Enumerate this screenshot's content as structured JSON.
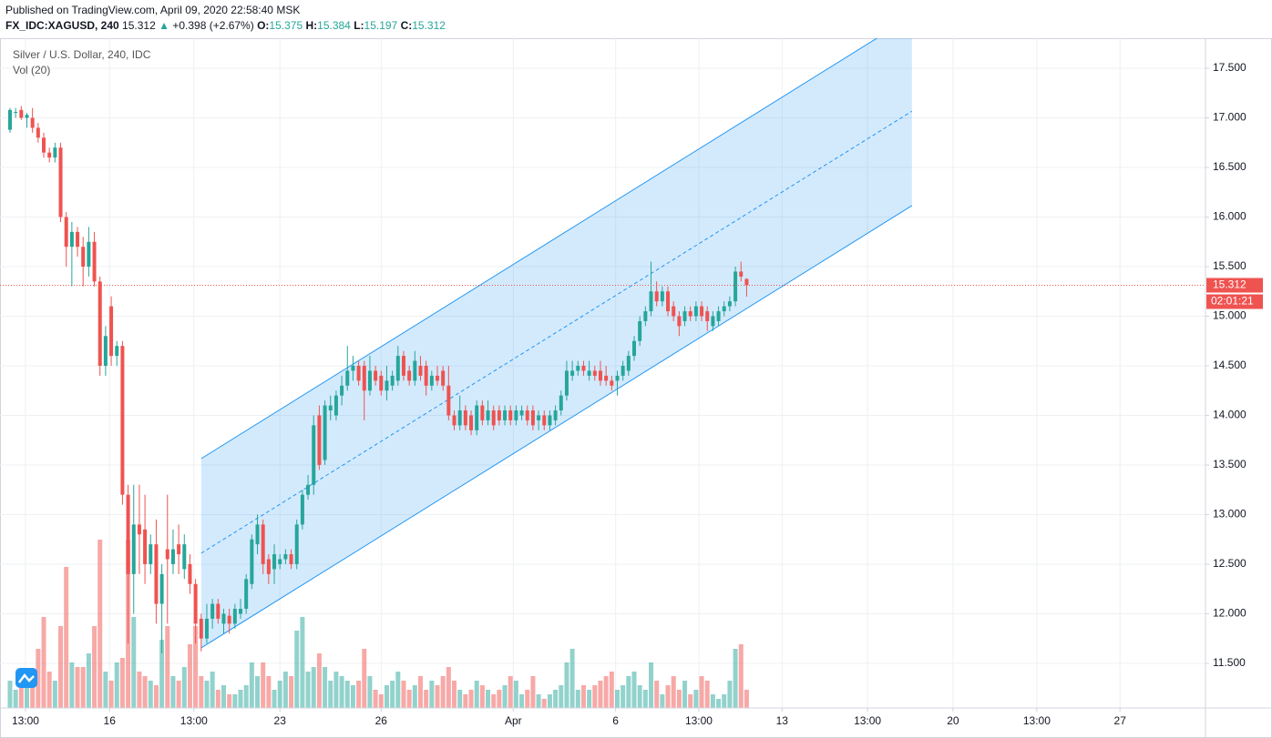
{
  "header": {
    "published": "Published on TradingView.com, April 09, 2020 22:58:40 MSK",
    "symbol": "FX_IDC:XAGUSD, 240",
    "change": "+0.398 (+2.67%)",
    "o": "O:",
    "h": "H:",
    "l": "L:",
    "c": "C:"
  },
  "chart_data": {
    "type": "candlestick",
    "title": "Silver / U.S. Dollar, 240, IDC",
    "indicator": "Vol (20)",
    "up_color": "#26a69a",
    "down_color": "#ef5350",
    "grid": true,
    "countdown": "02:01:21",
    "xlim": [
      -1.78,
      212.6
    ],
    "ylim": [
      11.05,
      17.803
    ],
    "xticks": [
      {
        "value": 2.75,
        "label": "13:00"
      },
      {
        "value": 17.7,
        "label": "16"
      },
      {
        "value": 32.7,
        "label": "13:00"
      },
      {
        "value": 48,
        "label": "23"
      },
      {
        "value": 66,
        "label": "26"
      },
      {
        "value": 89.5,
        "label": "Apr"
      },
      {
        "value": 107.7,
        "label": "6"
      },
      {
        "value": 122.5,
        "label": "13:00"
      },
      {
        "value": 137.3,
        "label": "13"
      },
      {
        "value": 152.5,
        "label": "13:00"
      },
      {
        "value": 167.7,
        "label": "20"
      },
      {
        "value": 182.6,
        "label": "13:00"
      },
      {
        "value": 197.4,
        "label": "27"
      }
    ],
    "yticks": [
      {
        "value": 11.5,
        "label": "11.500"
      },
      {
        "value": 12,
        "label": "12.000"
      },
      {
        "value": 12.5,
        "label": "12.500"
      },
      {
        "value": 13,
        "label": "13.000"
      },
      {
        "value": 13.5,
        "label": "13.500"
      },
      {
        "value": 14,
        "label": "14.000"
      },
      {
        "value": 14.5,
        "label": "14.500"
      },
      {
        "value": 15,
        "label": "15.000"
      },
      {
        "value": 15.5,
        "label": "15.500"
      },
      {
        "value": 16,
        "label": "16.000"
      },
      {
        "value": 16.5,
        "label": "16.500"
      },
      {
        "value": 17,
        "label": "17.000"
      },
      {
        "value": 17.5,
        "label": "17.500"
      }
    ],
    "candles": [
      [
        16.88,
        17.1,
        16.85,
        17.08
      ],
      [
        17.05,
        17.1,
        17.0,
        17.06
      ],
      [
        17.08,
        17.12,
        16.98,
        17.0
      ],
      [
        17.0,
        17.05,
        16.9,
        17.03
      ],
      [
        17.0,
        17.1,
        16.85,
        16.9
      ],
      [
        16.9,
        16.95,
        16.75,
        16.8
      ],
      [
        16.8,
        16.85,
        16.6,
        16.65
      ],
      [
        16.65,
        16.7,
        16.55,
        16.6
      ],
      [
        16.6,
        16.75,
        16.55,
        16.7
      ],
      [
        16.7,
        16.75,
        15.95,
        16.0
      ],
      [
        16.0,
        16.05,
        15.5,
        15.7
      ],
      [
        15.7,
        15.95,
        15.3,
        15.85
      ],
      [
        15.85,
        15.9,
        15.6,
        15.7
      ],
      [
        15.7,
        15.8,
        15.3,
        15.5
      ],
      [
        15.5,
        15.9,
        15.4,
        15.75
      ],
      [
        15.75,
        15.85,
        15.3,
        15.35
      ],
      [
        15.35,
        15.4,
        14.4,
        14.5
      ],
      [
        14.5,
        14.9,
        14.4,
        14.8
      ],
      [
        15.1,
        15.2,
        14.5,
        14.6
      ],
      [
        14.6,
        14.75,
        14.5,
        14.7
      ],
      [
        14.7,
        14.75,
        13.1,
        13.2
      ],
      [
        13.2,
        13.3,
        11.7,
        12.4
      ],
      [
        12.4,
        13.3,
        12.0,
        12.9
      ],
      [
        12.9,
        13.3,
        12.4,
        12.8
      ],
      [
        12.85,
        13.2,
        12.3,
        12.5
      ],
      [
        12.5,
        12.8,
        12.4,
        12.7
      ],
      [
        12.7,
        12.95,
        11.9,
        12.1
      ],
      [
        12.1,
        12.5,
        11.6,
        12.4
      ],
      [
        12.65,
        13.2,
        11.9,
        12.55
      ],
      [
        12.5,
        12.85,
        12.4,
        12.65
      ],
      [
        12.7,
        12.9,
        12.4,
        12.6
      ],
      [
        12.45,
        12.8,
        12.35,
        12.7
      ],
      [
        12.5,
        12.6,
        12.2,
        12.3
      ],
      [
        12.3,
        12.35,
        11.7,
        11.9
      ],
      [
        11.95,
        12.0,
        11.62,
        11.75
      ],
      [
        11.75,
        12.1,
        11.7,
        11.95
      ],
      [
        11.95,
        12.15,
        11.85,
        12.1
      ],
      [
        12.1,
        12.15,
        11.9,
        11.95
      ],
      [
        11.9,
        12.05,
        11.8,
        12.0
      ],
      [
        11.98,
        12.05,
        11.8,
        11.9
      ],
      [
        11.9,
        12.1,
        11.85,
        12.05
      ],
      [
        12.0,
        12.15,
        11.95,
        12.05
      ],
      [
        12.05,
        12.4,
        12.0,
        12.35
      ],
      [
        12.3,
        12.8,
        12.25,
        12.75
      ],
      [
        12.7,
        13.0,
        12.6,
        12.9
      ],
      [
        12.9,
        12.95,
        12.4,
        12.5
      ],
      [
        12.55,
        12.6,
        12.3,
        12.4
      ],
      [
        12.45,
        12.7,
        12.3,
        12.6
      ],
      [
        12.5,
        12.6,
        12.45,
        12.55
      ],
      [
        12.55,
        12.65,
        12.5,
        12.6
      ],
      [
        12.6,
        12.65,
        12.45,
        12.5
      ],
      [
        12.5,
        12.95,
        12.45,
        12.9
      ],
      [
        12.9,
        13.25,
        12.85,
        13.2
      ],
      [
        13.2,
        13.4,
        13.15,
        13.3
      ],
      [
        13.3,
        14.0,
        13.2,
        13.9
      ],
      [
        14.0,
        14.1,
        13.45,
        13.5
      ],
      [
        13.55,
        14.15,
        13.5,
        14.1
      ],
      [
        14.05,
        14.2,
        13.95,
        14.1
      ],
      [
        14.0,
        14.25,
        13.95,
        14.2
      ],
      [
        14.2,
        14.4,
        14.1,
        14.3
      ],
      [
        14.3,
        14.7,
        14.25,
        14.45
      ],
      [
        14.45,
        14.6,
        14.35,
        14.5
      ],
      [
        14.5,
        14.55,
        14.3,
        14.35
      ],
      [
        14.5,
        14.55,
        13.95,
        14.25
      ],
      [
        14.25,
        14.6,
        14.2,
        14.45
      ],
      [
        14.45,
        14.5,
        14.3,
        14.35
      ],
      [
        14.4,
        14.45,
        14.2,
        14.25
      ],
      [
        14.25,
        14.5,
        14.15,
        14.35
      ],
      [
        14.3,
        14.45,
        14.25,
        14.4
      ],
      [
        14.35,
        14.7,
        14.3,
        14.6
      ],
      [
        14.6,
        14.65,
        14.35,
        14.4
      ],
      [
        14.45,
        14.5,
        14.3,
        14.35
      ],
      [
        14.35,
        14.65,
        14.3,
        14.55
      ],
      [
        14.5,
        14.6,
        14.35,
        14.4
      ],
      [
        14.5,
        14.55,
        14.2,
        14.3
      ],
      [
        14.3,
        14.45,
        14.25,
        14.4
      ],
      [
        14.4,
        14.5,
        14.3,
        14.35
      ],
      [
        14.45,
        14.5,
        14.25,
        14.3
      ],
      [
        14.3,
        14.5,
        13.95,
        14.0
      ],
      [
        14.0,
        14.05,
        13.85,
        13.9
      ],
      [
        13.9,
        14.2,
        13.85,
        14.05
      ],
      [
        14.05,
        14.1,
        13.85,
        13.9
      ],
      [
        14.0,
        14.05,
        13.8,
        13.85
      ],
      [
        13.85,
        14.15,
        13.8,
        14.1
      ],
      [
        14.1,
        14.15,
        13.9,
        13.95
      ],
      [
        13.95,
        14.15,
        13.9,
        14.05
      ],
      [
        14.05,
        14.1,
        13.85,
        13.9
      ],
      [
        14.05,
        14.1,
        13.9,
        13.95
      ],
      [
        13.95,
        14.1,
        13.9,
        14.05
      ],
      [
        14.05,
        14.1,
        13.9,
        13.95
      ],
      [
        13.95,
        14.1,
        13.9,
        14.05
      ],
      [
        14.0,
        14.1,
        13.95,
        14.05
      ],
      [
        14.05,
        14.1,
        13.9,
        13.95
      ],
      [
        14.05,
        14.1,
        13.85,
        13.9
      ],
      [
        13.95,
        14.05,
        13.85,
        14.0
      ],
      [
        14.0,
        14.05,
        13.85,
        13.9
      ],
      [
        13.9,
        14.05,
        13.85,
        14.0
      ],
      [
        13.95,
        14.1,
        13.9,
        14.05
      ],
      [
        14.05,
        14.25,
        14.0,
        14.2
      ],
      [
        14.2,
        14.55,
        14.15,
        14.45
      ],
      [
        14.4,
        14.55,
        14.35,
        14.45
      ],
      [
        14.45,
        14.55,
        14.4,
        14.5
      ],
      [
        14.5,
        14.55,
        14.4,
        14.45
      ],
      [
        14.4,
        14.55,
        14.35,
        14.45
      ],
      [
        14.45,
        14.5,
        14.35,
        14.4
      ],
      [
        14.45,
        14.55,
        14.3,
        14.35
      ],
      [
        14.4,
        14.5,
        14.3,
        14.35
      ],
      [
        14.35,
        14.4,
        14.25,
        14.3
      ],
      [
        14.35,
        14.45,
        14.2,
        14.4
      ],
      [
        14.4,
        14.55,
        14.35,
        14.5
      ],
      [
        14.45,
        14.65,
        14.4,
        14.6
      ],
      [
        14.6,
        14.8,
        14.55,
        14.75
      ],
      [
        14.75,
        15.0,
        14.7,
        14.95
      ],
      [
        14.95,
        15.1,
        14.9,
        15.05
      ],
      [
        15.05,
        15.55,
        15.0,
        15.25
      ],
      [
        15.25,
        15.35,
        15.1,
        15.15
      ],
      [
        15.15,
        15.3,
        15.1,
        15.25
      ],
      [
        15.25,
        15.3,
        15.0,
        15.05
      ],
      [
        15.1,
        15.15,
        14.95,
        15.0
      ],
      [
        15.0,
        15.05,
        14.8,
        14.9
      ],
      [
        14.95,
        15.1,
        14.9,
        15.05
      ],
      [
        15.05,
        15.1,
        14.95,
        15.0
      ],
      [
        15.0,
        15.15,
        14.95,
        15.1
      ],
      [
        15.1,
        15.15,
        14.95,
        15.0
      ],
      [
        15.05,
        15.1,
        14.85,
        14.95
      ],
      [
        14.9,
        15.05,
        14.85,
        15.0
      ],
      [
        14.95,
        15.1,
        14.9,
        15.05
      ],
      [
        15.05,
        15.15,
        15.0,
        15.1
      ],
      [
        15.1,
        15.2,
        15.05,
        15.15
      ],
      [
        15.15,
        15.5,
        15.1,
        15.45
      ],
      [
        15.45,
        15.55,
        15.35,
        15.4
      ],
      [
        15.375,
        15.384,
        15.197,
        15.312
      ]
    ],
    "volume": [
      12,
      8,
      10,
      16,
      12,
      26,
      40,
      16,
      12,
      36,
      62,
      20,
      18,
      18,
      24,
      36,
      74,
      16,
      12,
      20,
      22,
      74,
      40,
      16,
      14,
      12,
      10,
      30,
      36,
      14,
      12,
      18,
      28,
      36,
      14,
      12,
      16,
      8,
      10,
      6,
      6,
      8,
      10,
      20,
      14,
      20,
      14,
      8,
      12,
      16,
      14,
      34,
      40,
      16,
      18,
      24,
      18,
      12,
      16,
      14,
      12,
      10,
      12,
      26,
      14,
      8,
      6,
      10,
      12,
      16,
      12,
      8,
      10,
      14,
      8,
      12,
      10,
      14,
      18,
      12,
      8,
      6,
      8,
      12,
      10,
      8,
      6,
      8,
      10,
      14,
      12,
      6,
      8,
      14,
      6,
      4,
      6,
      8,
      10,
      20,
      26,
      8,
      10,
      8,
      10,
      12,
      14,
      16,
      8,
      10,
      14,
      16,
      10,
      8,
      20,
      12,
      6,
      10,
      14,
      8,
      12,
      6,
      8,
      14,
      12,
      6,
      4,
      6,
      12,
      26,
      28,
      8
    ],
    "channel": {
      "x": [
        34,
        160.4
      ],
      "upper": [
        13.564,
        18.023
      ],
      "middle": [
        12.61,
        17.067
      ],
      "lower": [
        11.656,
        16.115
      ],
      "color": "#2196f3"
    },
    "last_price_color": "#ef5350"
  }
}
